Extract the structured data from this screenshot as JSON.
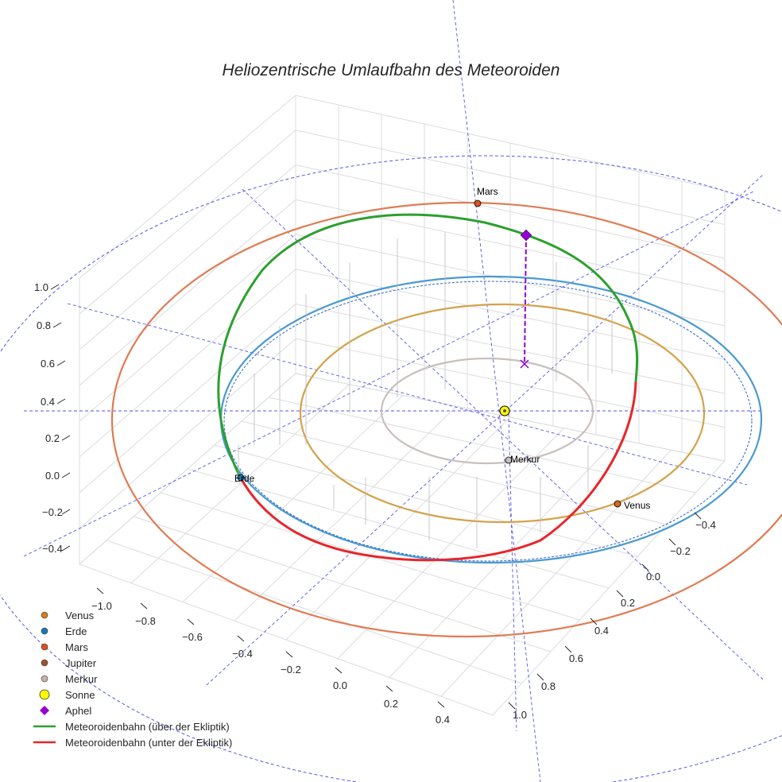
{
  "chart_data": {
    "type": "line",
    "title": "Heliozentrische Umlaufbahn des Meteoroiden",
    "projection": "3d",
    "axes": {
      "x": {
        "ticks": [
          "−1.0",
          "−0.8",
          "−0.6",
          "−0.4",
          "−0.2",
          "0.0",
          "0.2",
          "0.4"
        ]
      },
      "y": {
        "ticks": [
          "−0.4",
          "−0.2",
          "0.0",
          "0.2",
          "0.4",
          "0.6",
          "0.8",
          "1.0"
        ]
      },
      "z": {
        "ticks": [
          "−0.4",
          "−0.2",
          "0.0",
          "0.2",
          "0.4",
          "0.6",
          "0.8",
          "1.0"
        ]
      }
    },
    "planets": [
      {
        "name": "Venus",
        "label": "Venus",
        "orbit_radius_au": 0.72,
        "color": "#d4a24c",
        "marker_color": "#d2691e"
      },
      {
        "name": "Erde",
        "label": "Erde",
        "orbit_radius_au": 1.0,
        "color": "#4a9ad0",
        "marker_color": "#1f77b4"
      },
      {
        "name": "Mars",
        "label": "Mars",
        "orbit_radius_au": 1.52,
        "color": "#e07b54",
        "marker_color": "#d9541e"
      },
      {
        "name": "Merkur",
        "label": "Merkur",
        "orbit_radius_au": 0.39,
        "color": "#c8c0bc",
        "marker_color": "#c8c0bc"
      }
    ],
    "sun": {
      "name": "Sonne",
      "color": "#ffff00"
    },
    "aphel": {
      "name": "Aphel",
      "color": "#9400d3"
    },
    "meteoroid": {
      "above": {
        "name": "Meteoroidenbahn (über der Ekliptik)",
        "color": "#2ca02c"
      },
      "below": {
        "name": "Meteoroidenbahn (unter der Ekliptik)",
        "color": "#e8262b"
      }
    },
    "legend": {
      "position": "bottom-left",
      "items": [
        {
          "label": "Venus",
          "kind": "dot",
          "color": "#d2801e"
        },
        {
          "label": "Erde",
          "kind": "dot",
          "color": "#1f77b4"
        },
        {
          "label": "Mars",
          "kind": "dot",
          "color": "#d9541e"
        },
        {
          "label": "Jupiter",
          "kind": "dot",
          "color": "#a0522d"
        },
        {
          "label": "Merkur",
          "kind": "dot",
          "color": "#c8b0a8"
        },
        {
          "label": "Sonne",
          "kind": "bigdot",
          "color": "#ffff00"
        },
        {
          "label": "Aphel",
          "kind": "diamond",
          "color": "#9400d3"
        },
        {
          "label": "Meteoroidenbahn (über der Ekliptik)",
          "kind": "line",
          "color": "#2ca02c"
        },
        {
          "label": "Meteoroidenbahn (unter der Ekliptik)",
          "kind": "line",
          "color": "#e8262b"
        }
      ]
    },
    "ecliptic_grid": {
      "color": "#5555ee",
      "style": "dashed"
    },
    "grid": true
  }
}
